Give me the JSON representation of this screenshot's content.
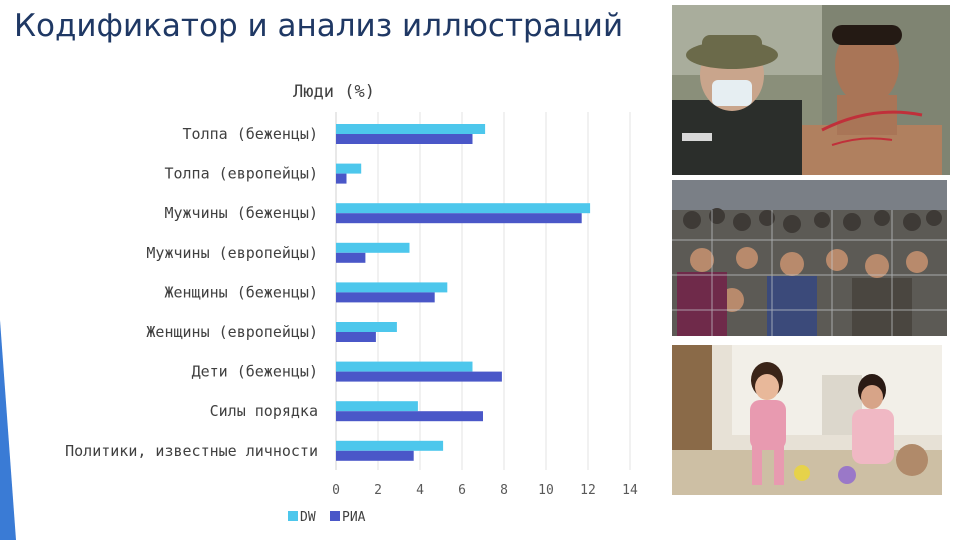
{
  "slide": {
    "title": "Кодификатор и анализ иллюстраций",
    "accent_color": "#3a7bd5"
  },
  "photos": [
    {
      "name": "photo-police-and-protester"
    },
    {
      "name": "photo-refugee-crowd-at-fence"
    },
    {
      "name": "photo-child-and-woman-indoors"
    }
  ],
  "chart_data": {
    "type": "bar",
    "orientation": "horizontal",
    "title": "Люди (%)",
    "categories": [
      "Толпа (беженцы)",
      "Толпа (европейцы)",
      "Мужчины (беженцы)",
      "Мужчины (европейцы)",
      "Женщины (беженцы)",
      "Женщины (европейцы)",
      "Дети (беженцы)",
      "Силы порядка",
      "Политики, известные личности"
    ],
    "series": [
      {
        "name": "DW",
        "color": "#4dc7ec",
        "values": [
          7.1,
          1.2,
          12.1,
          3.5,
          5.3,
          2.9,
          6.5,
          3.9,
          5.1
        ]
      },
      {
        "name": "РИА",
        "color": "#4a57c8",
        "values": [
          6.5,
          0.5,
          11.7,
          1.4,
          4.7,
          1.9,
          7.9,
          7.0,
          3.7
        ]
      }
    ],
    "xlim": [
      0,
      14
    ],
    "xticks": [
      "0",
      "2",
      "4",
      "6",
      "8",
      "10",
      "12",
      "14"
    ],
    "grid": true,
    "legend": "bottom"
  }
}
